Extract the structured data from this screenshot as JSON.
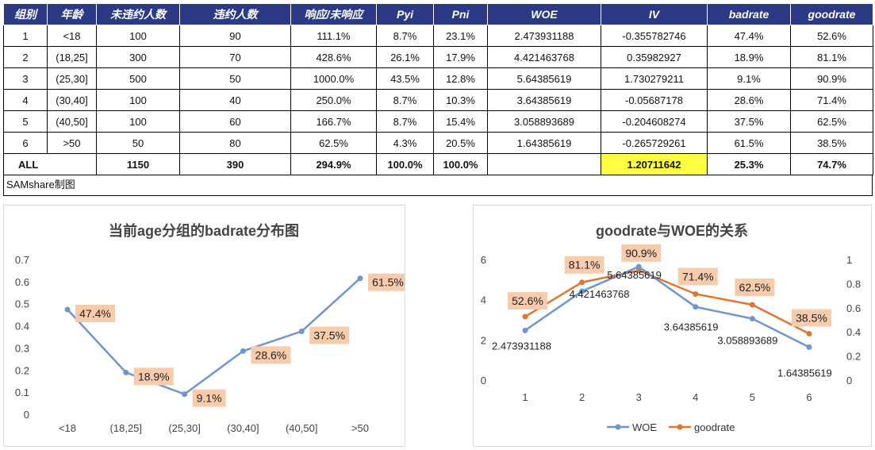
{
  "table": {
    "headers": [
      "组别",
      "年龄",
      "未违约人数",
      "违约人数",
      "响应/未响应",
      "Pyi",
      "Pni",
      "WOE",
      "IV",
      "badrate",
      "goodrate"
    ],
    "rows": [
      [
        "1",
        "<18",
        "100",
        "90",
        "111.1%",
        "8.7%",
        "23.1%",
        "2.473931188",
        "-0.355782746",
        "47.4%",
        "52.6%"
      ],
      [
        "2",
        "(18,25]",
        "300",
        "70",
        "428.6%",
        "26.1%",
        "17.9%",
        "4.421463768",
        "0.35982927",
        "18.9%",
        "81.1%"
      ],
      [
        "3",
        "(25,30]",
        "500",
        "50",
        "1000.0%",
        "43.5%",
        "12.8%",
        "5.64385619",
        "1.730279211",
        "9.1%",
        "90.9%"
      ],
      [
        "4",
        "(30,40]",
        "100",
        "40",
        "250.0%",
        "8.7%",
        "10.3%",
        "3.64385619",
        "-0.05687178",
        "28.6%",
        "71.4%"
      ],
      [
        "5",
        "(40,50]",
        "100",
        "60",
        "166.7%",
        "8.7%",
        "15.4%",
        "3.058893689",
        "-0.204608274",
        "37.5%",
        "62.5%"
      ],
      [
        "6",
        ">50",
        "50",
        "80",
        "62.5%",
        "4.3%",
        "20.5%",
        "1.64385619",
        "-0.265729261",
        "61.5%",
        "38.5%"
      ]
    ],
    "total": [
      "ALL",
      "1150",
      "390",
      "294.9%",
      "100.0%",
      "100.0%",
      "",
      "1.20711642",
      "25.3%",
      "74.7%"
    ],
    "source_note": "SAMshare制图",
    "header_color": "#2b3a84",
    "highlight_color": "#ffff44"
  },
  "chart_data": [
    {
      "type": "line",
      "title": "当前age分组的badrate分布图",
      "categories": [
        "<18",
        "(18,25]",
        "(25,30]",
        "(30,40]",
        "(40,50]",
        ">50"
      ],
      "series": [
        {
          "values": [
            0.474,
            0.189,
            0.091,
            0.286,
            0.375,
            0.615
          ],
          "labels": [
            "47.4%",
            "18.9%",
            "9.1%",
            "28.6%",
            "37.5%",
            "61.5%"
          ],
          "color": "#6f95d0"
        }
      ],
      "ylim": [
        0,
        0.7
      ],
      "yticks": [
        "0",
        "0.1",
        "0.2",
        "0.3",
        "0.4",
        "0.5",
        "0.6",
        "0.7"
      ],
      "label_bg": "#f8cbad",
      "grid": false
    },
    {
      "type": "line",
      "title": "goodrate与WOE的关系",
      "categories": [
        "1",
        "2",
        "3",
        "4",
        "5",
        "6"
      ],
      "series": [
        {
          "name": "WOE",
          "axis": "left",
          "values": [
            2.473931188,
            4.421463768,
            5.64385619,
            3.64385619,
            3.058893689,
            1.64385619
          ],
          "labels": [
            "2.473931188",
            "4.421463768",
            "5.64385619",
            "3.64385619",
            "3.058893689",
            "1.64385619"
          ],
          "color": "#6f95d0"
        },
        {
          "name": "goodrate",
          "axis": "right",
          "values": [
            0.526,
            0.811,
            0.909,
            0.714,
            0.625,
            0.385
          ],
          "labels": [
            "52.6%",
            "81.1%",
            "90.9%",
            "71.4%",
            "62.5%",
            "38.5%"
          ],
          "color": "#e0762f"
        }
      ],
      "ylim_left": [
        0,
        6
      ],
      "yticks_left": [
        "0",
        "2",
        "4",
        "6"
      ],
      "ylim_right": [
        0,
        1
      ],
      "yticks_right": [
        "0",
        "0.2",
        "0.4",
        "0.6",
        "0.8",
        "1"
      ],
      "legend": "bottom",
      "label_bg": "#f8cbad",
      "grid": false
    }
  ]
}
